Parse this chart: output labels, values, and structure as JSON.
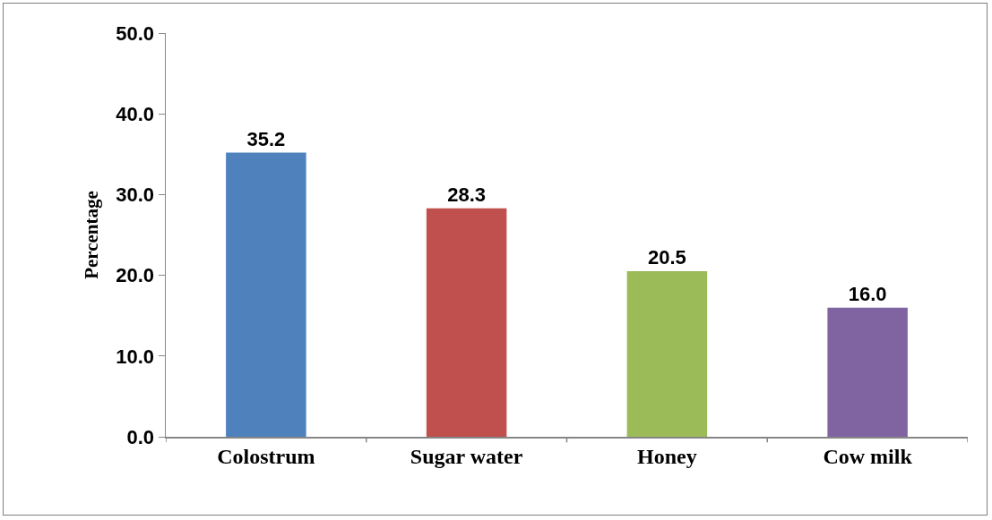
{
  "chart_data": {
    "type": "bar",
    "ylabel": "Percentage",
    "categories": [
      "Colostrum",
      "Sugar water",
      "Honey",
      "Cow milk"
    ],
    "values": [
      35.2,
      28.3,
      20.5,
      16.0
    ],
    "colors": [
      "#4f81bd",
      "#c0504d",
      "#9bbb59",
      "#8064a2"
    ],
    "value_labels": [
      "35.2",
      "28.3",
      "20.5",
      "16.0"
    ],
    "ylim": [
      0,
      50
    ],
    "yticks": [
      {
        "value": 0,
        "label": "0.0"
      },
      {
        "value": 10,
        "label": "10.0"
      },
      {
        "value": 20,
        "label": "20.0"
      },
      {
        "value": 30,
        "label": "30.0"
      },
      {
        "value": 40,
        "label": "40.0"
      },
      {
        "value": 50,
        "label": "50.0"
      }
    ],
    "grid": false
  }
}
